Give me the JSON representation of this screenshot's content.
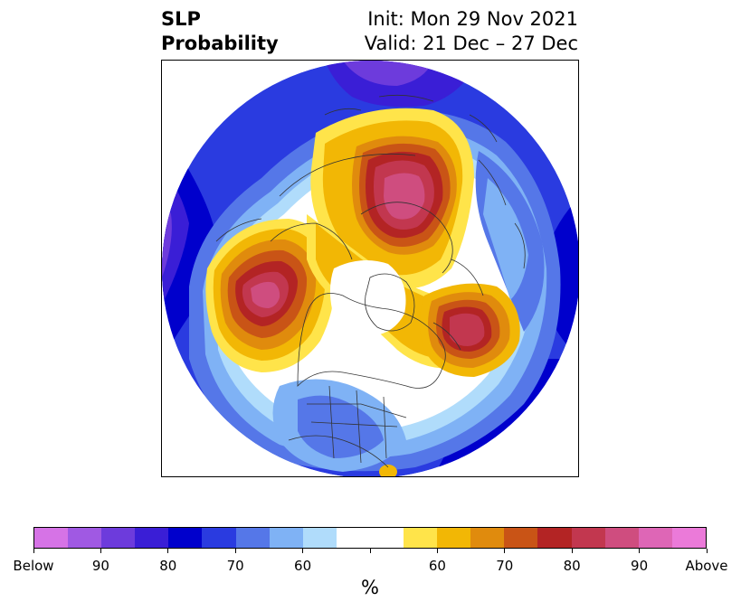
{
  "title": {
    "variable": "SLP",
    "product": "Probability",
    "init": "Init: Mon 29 Nov 2021",
    "valid": "Valid: 21 Dec – 27 Dec"
  },
  "map": {
    "projection": "north-polar-stereographic",
    "features": [
      "coastlines",
      "country-borders",
      "state-borders"
    ]
  },
  "colorbar": {
    "colors": [
      "#d673e6",
      "#a059e3",
      "#6d3bdc",
      "#3a1ed6",
      "#0000cc",
      "#2a3be0",
      "#5577e8",
      "#7fb2f5",
      "#b0dcfb",
      "#ffffff",
      "#ffffff",
      "#ffe44a",
      "#f2b705",
      "#e08b0d",
      "#c95416",
      "#b32424",
      "#c2374f",
      "#cf4d7f",
      "#de66b6",
      "#eb7ad9"
    ],
    "tick_labels": [
      "Below",
      "90",
      "80",
      "70",
      "60",
      "",
      "60",
      "70",
      "80",
      "90",
      "Above"
    ],
    "unit": "%"
  }
}
